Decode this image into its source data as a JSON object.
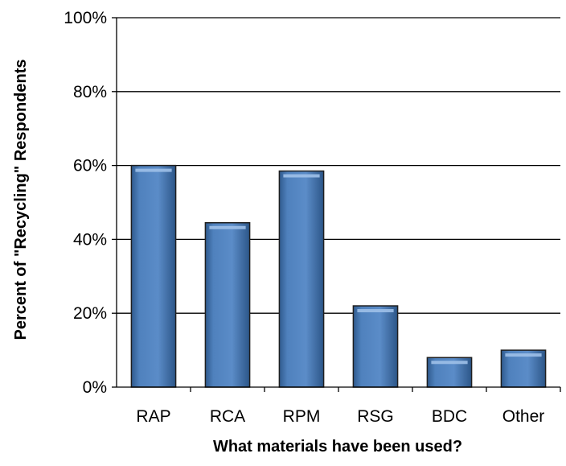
{
  "chart_data": {
    "type": "bar",
    "title": "",
    "xlabel": "What materials have been used?",
    "ylabel": "Percent of \"Recycling\" Respondents",
    "categories": [
      "RAP",
      "RCA",
      "RPM",
      "RSG",
      "BDC",
      "Other"
    ],
    "values": [
      60,
      44.5,
      58.5,
      22,
      8,
      10
    ],
    "ylim": [
      0,
      100
    ],
    "yticks": [
      "0%",
      "20%",
      "40%",
      "60%",
      "80%",
      "100%"
    ],
    "grid": true,
    "legend": "none",
    "colors": {
      "bar_fill": "#4f81bd",
      "bar_dark": "#2e5b8f",
      "bar_edge": "#1f1f1f",
      "gridline": "#000000"
    }
  }
}
